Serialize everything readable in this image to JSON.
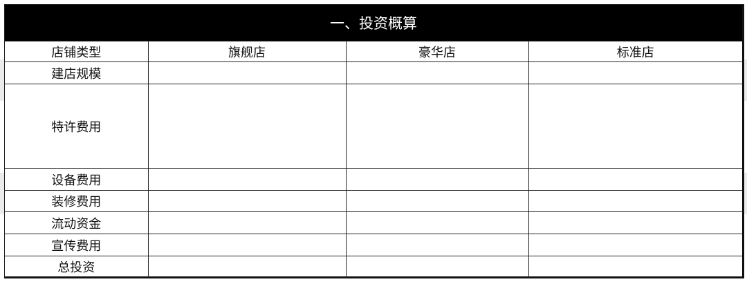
{
  "title": "一、投资概算",
  "header": [
    "店铺类型",
    "旗舰店",
    "豪华店",
    "标准店"
  ],
  "rows": [
    {
      "label": "建店规模",
      "cells": [
        "",
        "",
        ""
      ]
    },
    {
      "label": "特许费用",
      "cells": [
        "",
        "",
        ""
      ]
    },
    {
      "label": "设备费用",
      "cells": [
        "",
        "",
        ""
      ]
    },
    {
      "label": "装修费用",
      "cells": [
        "",
        "",
        ""
      ]
    },
    {
      "label": "流动资金",
      "cells": [
        "",
        "",
        ""
      ]
    },
    {
      "label": "宣传费用",
      "cells": [
        "",
        "",
        ""
      ]
    },
    {
      "label": "总投资",
      "cells": [
        "",
        "",
        ""
      ]
    }
  ]
}
